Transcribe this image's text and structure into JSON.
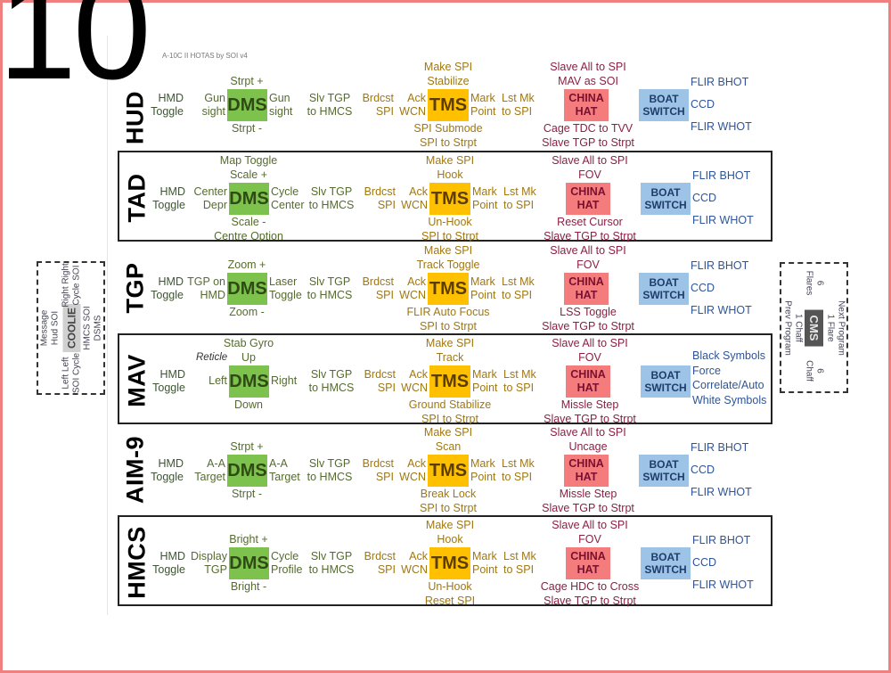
{
  "page_number": "10",
  "doc_title": "A-10C II HOTAS by SOI v4",
  "rows": [
    {
      "mode": "HUD",
      "hmd": [
        "HMD",
        "Toggle"
      ],
      "dms": {
        "label": "DMS",
        "up": [
          "Strpt +"
        ],
        "left": [
          "Gun",
          "sight"
        ],
        "right": [
          "Gun",
          "sight"
        ],
        "down": [
          "Strpt -"
        ]
      },
      "slv": [
        "Slv TGP",
        "to HMCS"
      ],
      "brdcst": [
        "Brdcst",
        "SPI"
      ],
      "ack": [
        "Ack",
        "WCN"
      ],
      "tms": {
        "label": "TMS",
        "up": [
          "Make SPI",
          "Stabilize"
        ],
        "down": [
          "SPI Submode",
          "SPI to Strpt"
        ]
      },
      "mark": [
        "Mark",
        "Point"
      ],
      "lst": [
        "Lst Mk",
        "to SPI"
      ],
      "china": {
        "label": [
          "CHINA",
          "HAT"
        ],
        "up": [
          "Slave All to SPI",
          "MAV as SOI"
        ],
        "down": [
          "Cage TDC to TVV",
          "Slave TGP to Strpt"
        ]
      },
      "boat": {
        "label": [
          "BOAT",
          "SWITCH"
        ],
        "items": [
          "FLIR BHOT",
          "CCD",
          "FLIR WHOT"
        ]
      }
    },
    {
      "mode": "TAD",
      "hmd": [
        "HMD",
        "Toggle"
      ],
      "dms": {
        "label": "DMS",
        "up": [
          "Map Toggle",
          "Scale +"
        ],
        "left": [
          "Center",
          "Depr"
        ],
        "right": [
          "Cycle",
          "Center"
        ],
        "down": [
          "Scale -",
          "Centre Option"
        ]
      },
      "slv": [
        "Slv TGP",
        "to HMCS"
      ],
      "brdcst": [
        "Brdcst",
        "SPI"
      ],
      "ack": [
        "Ack",
        "WCN"
      ],
      "tms": {
        "label": "TMS",
        "up": [
          "Make SPI",
          "Hook"
        ],
        "down": [
          "Un-Hook",
          "SPI to Strpt"
        ]
      },
      "mark": [
        "Mark",
        "Point"
      ],
      "lst": [
        "Lst Mk",
        "to SPI"
      ],
      "china": {
        "label": [
          "CHINA",
          "HAT"
        ],
        "up": [
          "Slave All to SPI",
          "FOV"
        ],
        "down": [
          "Reset Cursor",
          "Slave TGP to Strpt"
        ]
      },
      "boat": {
        "label": [
          "BOAT",
          "SWITCH"
        ],
        "items": [
          "FLIR BHOT",
          "CCD",
          "FLIR WHOT"
        ]
      }
    },
    {
      "mode": "TGP",
      "hmd": [
        "HMD",
        "Toggle"
      ],
      "dms": {
        "label": "DMS",
        "up": [
          "Zoom +"
        ],
        "left": [
          "TGP on",
          "HMD"
        ],
        "right": [
          "Laser",
          "Toggle"
        ],
        "down": [
          "Zoom -"
        ]
      },
      "slv": [
        "Slv TGP",
        "to HMCS"
      ],
      "brdcst": [
        "Brdcst",
        "SPI"
      ],
      "ack": [
        "Ack",
        "WCN"
      ],
      "tms": {
        "label": "TMS",
        "up": [
          "Make SPI",
          "Track Toggle"
        ],
        "down": [
          "FLIR Auto Focus",
          "SPI to Strpt"
        ]
      },
      "mark": [
        "Mark",
        "Point"
      ],
      "lst": [
        "Lst Mk",
        "to SPI"
      ],
      "china": {
        "label": [
          "CHINA",
          "HAT"
        ],
        "up": [
          "Slave All to SPI",
          "FOV"
        ],
        "down": [
          "LSS Toggle",
          "Slave TGP to Strpt"
        ]
      },
      "boat": {
        "label": [
          "BOAT",
          "SWITCH"
        ],
        "items": [
          "FLIR BHOT",
          "CCD",
          "FLIR WHOT"
        ]
      }
    },
    {
      "mode": "MAV",
      "hmd": [
        "HMD",
        "Toggle"
      ],
      "dms": {
        "label": "DMS",
        "up": [
          "Stab Gyro",
          "Up"
        ],
        "note": "Reticle",
        "left": [
          "Left"
        ],
        "right": [
          "Right"
        ],
        "down": [
          "Down"
        ]
      },
      "slv": [
        "Slv TGP",
        "to HMCS"
      ],
      "brdcst": [
        "Brdcst",
        "SPI"
      ],
      "ack": [
        "Ack",
        "WCN"
      ],
      "tms": {
        "label": "TMS",
        "up": [
          "Make SPI",
          "Track"
        ],
        "down": [
          "Ground Stabilize",
          "SPI to Strpt"
        ]
      },
      "mark": [
        "Mark",
        "Point"
      ],
      "lst": [
        "Lst Mk",
        "to SPI"
      ],
      "china": {
        "label": [
          "CHINA",
          "HAT"
        ],
        "up": [
          "Slave All to SPI",
          "FOV"
        ],
        "down": [
          "Missle Step",
          "Slave TGP to Strpt"
        ]
      },
      "boat": {
        "label": [
          "BOAT",
          "SWITCH"
        ],
        "items": [
          "Black Symbols",
          "Force",
          "Correlate/Auto",
          "White Symbols"
        ]
      }
    },
    {
      "mode": "AIM-9",
      "hmd": [
        "HMD",
        "Toggle"
      ],
      "dms": {
        "label": "DMS",
        "up": [
          "Strpt +"
        ],
        "left": [
          "A-A",
          "Target"
        ],
        "right": [
          "A-A",
          "Target"
        ],
        "down": [
          "Strpt -"
        ]
      },
      "slv": [
        "Slv TGP",
        "to HMCS"
      ],
      "brdcst": [
        "Brdcst",
        "SPI"
      ],
      "ack": [
        "Ack",
        "WCN"
      ],
      "tms": {
        "label": "TMS",
        "up": [
          "Make SPI",
          "Scan"
        ],
        "down": [
          "Break Lock",
          "SPI to Strpt"
        ]
      },
      "mark": [
        "Mark",
        "Point"
      ],
      "lst": [
        "Lst Mk",
        "to SPI"
      ],
      "china": {
        "label": [
          "CHINA",
          "HAT"
        ],
        "up": [
          "Slave All to SPI",
          "Uncage"
        ],
        "down": [
          "Missle Step",
          "Slave TGP to Strpt"
        ]
      },
      "boat": {
        "label": [
          "BOAT",
          "SWITCH"
        ],
        "items": [
          "FLIR BHOT",
          "CCD",
          "FLIR WHOT"
        ]
      }
    },
    {
      "mode": "HMCS",
      "hmd": [
        "HMD",
        "Toggle"
      ],
      "dms": {
        "label": "DMS",
        "up": [
          "Bright +"
        ],
        "left": [
          "Display",
          "TGP"
        ],
        "right": [
          "Cycle",
          "Profile"
        ],
        "down": [
          "Bright -"
        ]
      },
      "slv": [
        "Slv TGP",
        "to HMCS"
      ],
      "brdcst": [
        "Brdcst",
        "SPI"
      ],
      "ack": [
        "Ack",
        "WCN"
      ],
      "tms": {
        "label": "TMS",
        "up": [
          "Make SPI",
          "Hook"
        ],
        "down": [
          "Un-Hook",
          "Reset SPI"
        ]
      },
      "mark": [
        "Mark",
        "Point"
      ],
      "lst": [
        "Lst Mk",
        "to SPI"
      ],
      "china": {
        "label": [
          "CHINA",
          "HAT"
        ],
        "up": [
          "Slave All to SPI",
          "FOV"
        ],
        "down": [
          "Cage HDC to Cross",
          "Slave TGP to Strpt"
        ]
      },
      "boat": {
        "label": [
          "BOAT",
          "SWITCH"
        ],
        "items": [
          "FLIR BHOT",
          "CCD",
          "FLIR WHOT"
        ]
      }
    }
  ],
  "coolie": {
    "label": "COOLIE",
    "up": [
      "Message",
      "Hud SOI"
    ],
    "left": [
      "Left   Left",
      "SOI Cycle"
    ],
    "right": [
      "Right Right",
      "Cycle SOI"
    ],
    "down": [
      "HMCS SOI",
      "DSMS"
    ]
  },
  "cms": {
    "label": "CMS",
    "up": [
      "Next Program",
      "1 Flare"
    ],
    "left": [
      "6",
      "Flares"
    ],
    "right": [
      "6",
      "Chaff"
    ],
    "down": [
      "1 Chaff",
      "Prev Program"
    ]
  },
  "colors": {
    "dms": "#7cc24c",
    "tms": "#ffc000",
    "china_hat": "#f47c7c",
    "boat_switch": "#9dc3e6",
    "border": "#f08080"
  }
}
